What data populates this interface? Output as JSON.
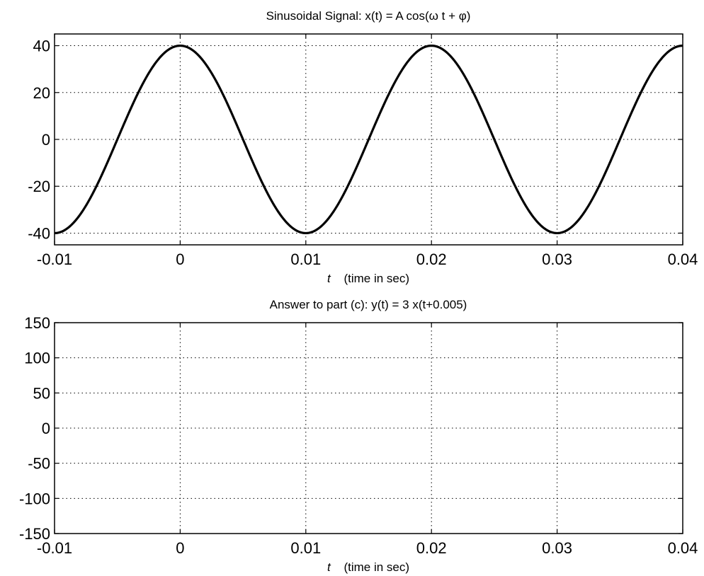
{
  "chart_data": [
    {
      "type": "line",
      "title": "Sinusoidal Signal:  x(t) = A cos(ω t + φ)",
      "xlabel_symbol": "t",
      "xlabel_text": "(time in sec)",
      "ylabel": "",
      "xlim": [
        -0.01,
        0.04
      ],
      "ylim": [
        -45,
        45
      ],
      "xticks": [
        -0.01,
        0,
        0.01,
        0.02,
        0.03,
        0.04
      ],
      "xtick_labels": [
        "-0.01",
        "0",
        "0.01",
        "0.02",
        "0.03",
        "0.04"
      ],
      "yticks": [
        -40,
        -20,
        0,
        20,
        40
      ],
      "ytick_labels": [
        "-40",
        "-20",
        "0",
        "20",
        "40"
      ],
      "grid": true,
      "series": [
        {
          "kind": "sinusoid",
          "amplitude": 40,
          "frequency_hz": 50,
          "phase_rad": 0,
          "x_range": [
            -0.01,
            0.04
          ],
          "color": "#000000"
        }
      ]
    },
    {
      "type": "line",
      "title": "Answer to part (c): y(t) = 3 x(t+0.005)",
      "xlabel_symbol": "t",
      "xlabel_text": "(time in sec)",
      "ylabel": "",
      "xlim": [
        -0.01,
        0.04
      ],
      "ylim": [
        -150,
        150
      ],
      "xticks": [
        -0.01,
        0,
        0.01,
        0.02,
        0.03,
        0.04
      ],
      "xtick_labels": [
        "-0.01",
        "0",
        "0.01",
        "0.02",
        "0.03",
        "0.04"
      ],
      "yticks": [
        -150,
        -100,
        -50,
        0,
        50,
        100,
        150
      ],
      "ytick_labels": [
        "-150",
        "-100",
        "-50",
        "0",
        "50",
        "100",
        "150"
      ],
      "grid": true,
      "series": []
    }
  ]
}
